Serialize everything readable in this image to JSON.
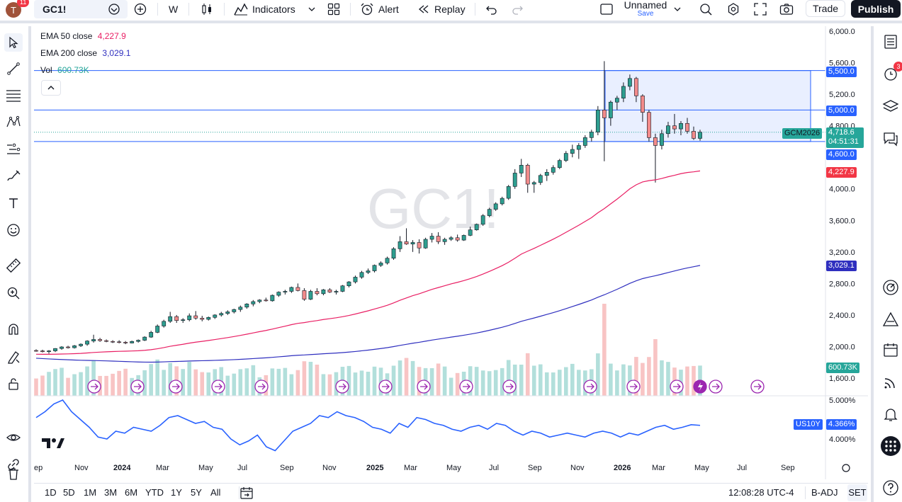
{
  "toolbar": {
    "avatar_badge": "11",
    "avatar_letter": "T",
    "symbol": "GC1!",
    "interval": "W",
    "indicators_label": "Indicators",
    "alert_label": "Alert",
    "replay_label": "Replay",
    "layout_name": "Unnamed",
    "layout_status": "Save",
    "trade_label": "Trade",
    "publish_label": "Publish"
  },
  "legend": {
    "ema50_label": "EMA 50 close",
    "ema50_value": "4,227.9",
    "ema200_label": "EMA 200 close",
    "ema200_value": "3,029.1",
    "vol_label": "Vol",
    "vol_value": "600.73K"
  },
  "watermark": "GC1!",
  "price_axis": {
    "ticks": [
      "6,000.0",
      "5,600.0",
      "5,200.0",
      "4,800.0",
      "4,000.0",
      "3,600.0",
      "3,200.0",
      "2,800.0",
      "2,400.0",
      "2,000.0",
      "1,600.0"
    ],
    "tags": {
      "level_5500": "5,500.0",
      "level_5000": "5,000.0",
      "contract": "GCM2026",
      "last_price": "4,718.6",
      "countdown": "04:51:31",
      "level_4600": "4,600.0",
      "ema50": "4,227.9",
      "ema200": "3,029.1",
      "volume": "600.73K"
    }
  },
  "lower_pane": {
    "ticks": [
      "5.000%",
      "4.000%"
    ],
    "symbol_tag": "US10Y",
    "value_tag": "4.366%"
  },
  "time_axis": [
    "ep",
    "Nov",
    "2024",
    "Mar",
    "May",
    "Jul",
    "Sep",
    "Nov",
    "2025",
    "Mar",
    "May",
    "Jul",
    "Sep",
    "Nov",
    "2026",
    "Mar",
    "May",
    "Jul",
    "Sep"
  ],
  "bottom": {
    "ranges": [
      "1D",
      "5D",
      "1M",
      "3M",
      "6M",
      "YTD",
      "1Y",
      "5Y",
      "All"
    ],
    "clock": "12:08:28 UTC-4",
    "adj": "B-ADJ",
    "session": "SET"
  },
  "right_badge": "3",
  "colors": {
    "up": "#26a69a",
    "down": "#ef5350",
    "ema50": "#e91e63",
    "ema200": "#2f2fbf",
    "us10y": "#2962ff",
    "level": "#2962ff"
  },
  "chart_data": {
    "type": "candlestick",
    "interval": "weekly",
    "ylim": [
      1500,
      6100
    ],
    "xlim": [
      "2023-09",
      "2026-09"
    ],
    "ohlc_weekly_approx": [
      [
        1950,
        1965,
        1935,
        1945
      ],
      [
        1945,
        1960,
        1925,
        1935
      ],
      [
        1935,
        1955,
        1910,
        1945
      ],
      [
        1945,
        1980,
        1930,
        1975
      ],
      [
        1975,
        2005,
        1960,
        1995
      ],
      [
        1995,
        2010,
        1975,
        1985
      ],
      [
        1985,
        2020,
        1975,
        2010
      ],
      [
        2010,
        2040,
        1995,
        2030
      ],
      [
        2030,
        2080,
        2010,
        2070
      ],
      [
        2070,
        2150,
        2050,
        2090
      ],
      [
        2090,
        2110,
        2060,
        2075
      ],
      [
        2075,
        2090,
        2055,
        2065
      ],
      [
        2065,
        2080,
        2045,
        2060
      ],
      [
        2060,
        2080,
        2040,
        2055
      ],
      [
        2055,
        2070,
        2030,
        2045
      ],
      [
        2045,
        2075,
        2040,
        2065
      ],
      [
        2065,
        2090,
        2050,
        2080
      ],
      [
        2080,
        2130,
        2070,
        2120
      ],
      [
        2120,
        2200,
        2110,
        2180
      ],
      [
        2180,
        2280,
        2170,
        2260
      ],
      [
        2260,
        2340,
        2240,
        2320
      ],
      [
        2320,
        2440,
        2300,
        2380
      ],
      [
        2380,
        2400,
        2300,
        2330
      ],
      [
        2330,
        2360,
        2300,
        2340
      ],
      [
        2340,
        2420,
        2320,
        2390
      ],
      [
        2390,
        2450,
        2340,
        2360
      ],
      [
        2360,
        2390,
        2320,
        2345
      ],
      [
        2345,
        2380,
        2330,
        2370
      ],
      [
        2370,
        2410,
        2350,
        2400
      ],
      [
        2400,
        2440,
        2380,
        2420
      ],
      [
        2420,
        2460,
        2400,
        2440
      ],
      [
        2440,
        2480,
        2420,
        2470
      ],
      [
        2470,
        2520,
        2440,
        2500
      ],
      [
        2500,
        2550,
        2480,
        2540
      ],
      [
        2540,
        2590,
        2510,
        2570
      ],
      [
        2570,
        2600,
        2550,
        2590
      ],
      [
        2590,
        2620,
        2570,
        2580
      ],
      [
        2580,
        2660,
        2570,
        2650
      ],
      [
        2650,
        2700,
        2630,
        2690
      ],
      [
        2690,
        2720,
        2660,
        2700
      ],
      [
        2700,
        2760,
        2680,
        2750
      ],
      [
        2750,
        2800,
        2700,
        2710
      ],
      [
        2710,
        2740,
        2580,
        2600
      ],
      [
        2600,
        2720,
        2590,
        2700
      ],
      [
        2700,
        2740,
        2650,
        2670
      ],
      [
        2670,
        2730,
        2650,
        2720
      ],
      [
        2720,
        2740,
        2680,
        2690
      ],
      [
        2690,
        2720,
        2660,
        2700
      ],
      [
        2700,
        2780,
        2690,
        2770
      ],
      [
        2770,
        2830,
        2750,
        2820
      ],
      [
        2820,
        2900,
        2800,
        2880
      ],
      [
        2880,
        2960,
        2860,
        2940
      ],
      [
        2940,
        2990,
        2920,
        2960
      ],
      [
        2960,
        3040,
        2940,
        3030
      ],
      [
        3030,
        3080,
        3010,
        3060
      ],
      [
        3060,
        3140,
        3040,
        3120
      ],
      [
        3120,
        3260,
        3100,
        3240
      ],
      [
        3240,
        3400,
        3200,
        3330
      ],
      [
        3330,
        3500,
        3290,
        3300
      ],
      [
        3300,
        3350,
        3200,
        3320
      ],
      [
        3320,
        3360,
        3180,
        3250
      ],
      [
        3250,
        3380,
        3240,
        3360
      ],
      [
        3360,
        3440,
        3320,
        3400
      ],
      [
        3400,
        3450,
        3300,
        3330
      ],
      [
        3330,
        3380,
        3290,
        3360
      ],
      [
        3360,
        3400,
        3340,
        3380
      ],
      [
        3380,
        3420,
        3330,
        3350
      ],
      [
        3350,
        3420,
        3340,
        3410
      ],
      [
        3410,
        3520,
        3400,
        3480
      ],
      [
        3480,
        3560,
        3470,
        3550
      ],
      [
        3550,
        3680,
        3530,
        3660
      ],
      [
        3660,
        3760,
        3640,
        3740
      ],
      [
        3740,
        3830,
        3720,
        3810
      ],
      [
        3810,
        3900,
        3790,
        3880
      ],
      [
        3880,
        4050,
        3860,
        4030
      ],
      [
        4030,
        4250,
        4000,
        4200
      ],
      [
        4200,
        4380,
        4150,
        4300
      ],
      [
        4300,
        4320,
        3950,
        4060
      ],
      [
        4060,
        4100,
        3950,
        4080
      ],
      [
        4080,
        4190,
        4050,
        4170
      ],
      [
        4170,
        4250,
        4100,
        4210
      ],
      [
        4210,
        4300,
        4180,
        4270
      ],
      [
        4270,
        4380,
        4250,
        4360
      ],
      [
        4360,
        4480,
        4340,
        4450
      ],
      [
        4450,
        4560,
        4400,
        4500
      ],
      [
        4500,
        4580,
        4380,
        4550
      ],
      [
        4550,
        4680,
        4520,
        4650
      ],
      [
        4650,
        4750,
        4600,
        4720
      ],
      [
        4720,
        5050,
        4680,
        5000
      ],
      [
        5000,
        5620,
        4350,
        4900
      ],
      [
        4900,
        5120,
        4800,
        5100
      ],
      [
        5100,
        5180,
        5000,
        5150
      ],
      [
        5150,
        5350,
        5100,
        5300
      ],
      [
        5300,
        5450,
        5250,
        5400
      ],
      [
        5400,
        5420,
        5100,
        5180
      ],
      [
        5180,
        5200,
        4850,
        4970
      ],
      [
        4970,
        5000,
        4600,
        4650
      ],
      [
        4650,
        4700,
        4080,
        4550
      ],
      [
        4550,
        4750,
        4500,
        4700
      ],
      [
        4700,
        4850,
        4650,
        4800
      ],
      [
        4800,
        4950,
        4700,
        4760
      ],
      [
        4760,
        4860,
        4680,
        4830
      ],
      [
        4830,
        4900,
        4700,
        4730
      ],
      [
        4730,
        4790,
        4620,
        4640
      ],
      [
        4640,
        4750,
        4610,
        4718.6
      ]
    ],
    "ema50_last": 4227.9,
    "ema200_last": 3029.1,
    "horizontal_levels": [
      5500,
      5000,
      4600
    ],
    "zone": {
      "top": 5500,
      "bottom": 4600,
      "from": "2025-12",
      "to": "2026-09"
    },
    "volume_last": "600.73K",
    "us10y": {
      "ylim": [
        3.7,
        5.1
      ],
      "last": 4.366
    }
  }
}
